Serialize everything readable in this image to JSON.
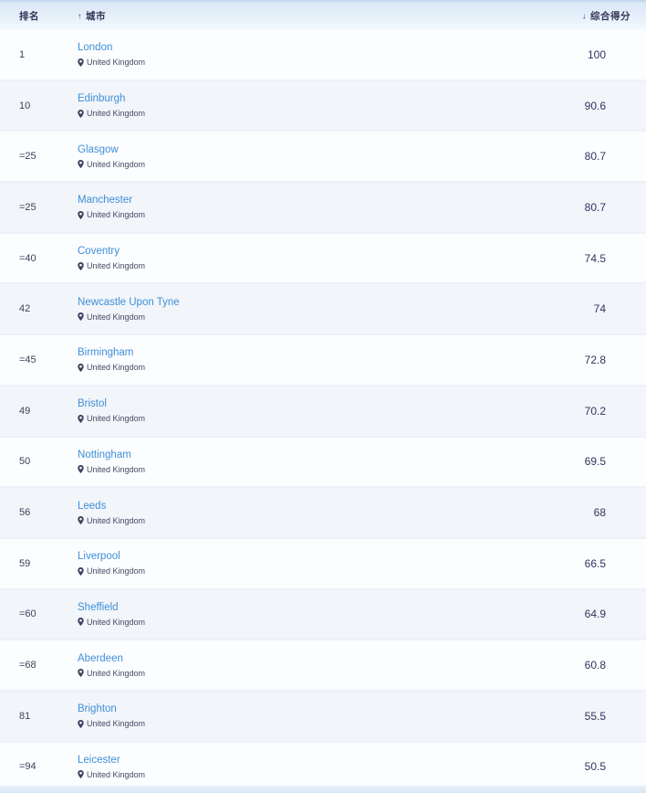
{
  "table": {
    "columns": {
      "rank": "排名",
      "city": "城市",
      "score": "综合得分"
    },
    "sort": {
      "city_icon": "↑",
      "score_icon": "↓"
    },
    "colors": {
      "link_blue": "#3e8fd8",
      "header_bg": "#e3eefa",
      "row_alt_bg": "#f2f5fa",
      "score_text": "#32335f"
    },
    "rows": [
      {
        "rank": "1",
        "city": "London",
        "country": "United Kingdom",
        "score": "100"
      },
      {
        "rank": "10",
        "city": "Edinburgh",
        "country": "United Kingdom",
        "score": "90.6"
      },
      {
        "rank": "=25",
        "city": "Glasgow",
        "country": "United Kingdom",
        "score": "80.7"
      },
      {
        "rank": "=25",
        "city": "Manchester",
        "country": "United Kingdom",
        "score": "80.7"
      },
      {
        "rank": "=40",
        "city": "Coventry",
        "country": "United Kingdom",
        "score": "74.5"
      },
      {
        "rank": "42",
        "city": "Newcastle Upon Tyne",
        "country": "United Kingdom",
        "score": "74"
      },
      {
        "rank": "=45",
        "city": "Birmingham",
        "country": "United Kingdom",
        "score": "72.8"
      },
      {
        "rank": "49",
        "city": "Bristol",
        "country": "United Kingdom",
        "score": "70.2"
      },
      {
        "rank": "50",
        "city": "Nottingham",
        "country": "United Kingdom",
        "score": "69.5"
      },
      {
        "rank": "56",
        "city": "Leeds",
        "country": "United Kingdom",
        "score": "68"
      },
      {
        "rank": "59",
        "city": "Liverpool",
        "country": "United Kingdom",
        "score": "66.5"
      },
      {
        "rank": "=60",
        "city": "Sheffield",
        "country": "United Kingdom",
        "score": "64.9"
      },
      {
        "rank": "=68",
        "city": "Aberdeen",
        "country": "United Kingdom",
        "score": "60.8"
      },
      {
        "rank": "81",
        "city": "Brighton",
        "country": "United Kingdom",
        "score": "55.5"
      },
      {
        "rank": "=94",
        "city": "Leicester",
        "country": "United Kingdom",
        "score": "50.5"
      }
    ]
  }
}
